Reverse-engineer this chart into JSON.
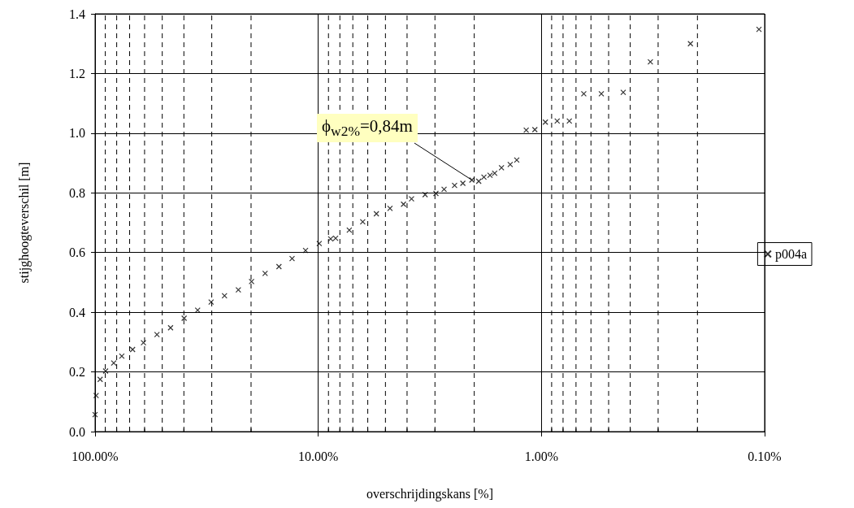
{
  "chart_data": {
    "type": "scatter",
    "xlabel": "overschrijdingskans [%]",
    "ylabel": "stijghoogteverschil [m]",
    "log": "x",
    "xlim": [
      100,
      0.1
    ],
    "ylim": [
      0,
      1.4
    ],
    "xticks": [
      {
        "value": 100,
        "label": "100.00%"
      },
      {
        "value": 10,
        "label": "10.00%"
      },
      {
        "value": 1,
        "label": "1.00%"
      },
      {
        "value": 0.1,
        "label": "0.10%"
      }
    ],
    "yticks": [
      {
        "value": 0,
        "label": "0.0"
      },
      {
        "value": 0.2,
        "label": "0.2"
      },
      {
        "value": 0.4,
        "label": "0.4"
      },
      {
        "value": 0.6,
        "label": "0.6"
      },
      {
        "value": 0.8,
        "label": "0.8"
      },
      {
        "value": 1.0,
        "label": "1.0"
      },
      {
        "value": 1.2,
        "label": "1.2"
      },
      {
        "value": 1.4,
        "label": "1.4"
      }
    ],
    "grid": true,
    "legend": "right",
    "marker": "cross",
    "annotations": [
      {
        "text": "ϕ$_{w2%}$=0,84m",
        "x": 2.05,
        "y": 0.843
      }
    ],
    "series": [
      {
        "name": "p004a",
        "color": "#000000",
        "x": [
          100,
          98.9,
          94.9,
          89.7,
          82.5,
          75.9,
          67.9,
          60.7,
          52.8,
          45.9,
          39.9,
          34.7,
          30.2,
          26.3,
          22.8,
          19.9,
          17.3,
          15.0,
          13.1,
          11.4,
          9.9,
          8.8,
          8.36,
          7.26,
          6.32,
          5.49,
          4.77,
          4.15,
          3.82,
          3.32,
          2.97,
          2.73,
          2.45,
          2.25,
          2.05,
          1.91,
          1.81,
          1.7,
          1.62,
          1.51,
          1.38,
          1.29,
          1.17,
          1.07,
          0.96,
          0.85,
          0.75,
          0.646,
          0.539,
          0.43,
          0.325,
          0.215,
          0.106
        ],
        "values": [
          0.057,
          0.121,
          0.175,
          0.203,
          0.23,
          0.253,
          0.275,
          0.298,
          0.325,
          0.348,
          0.38,
          0.407,
          0.434,
          0.455,
          0.475,
          0.503,
          0.53,
          0.553,
          0.58,
          0.607,
          0.63,
          0.646,
          0.648,
          0.675,
          0.703,
          0.73,
          0.748,
          0.762,
          0.78,
          0.794,
          0.798,
          0.812,
          0.825,
          0.832,
          0.843,
          0.839,
          0.853,
          0.859,
          0.866,
          0.884,
          0.895,
          0.91,
          1.01,
          1.012,
          1.037,
          1.041,
          1.041,
          1.132,
          1.132,
          1.137,
          1.239,
          1.3,
          1.348
        ]
      }
    ]
  }
}
